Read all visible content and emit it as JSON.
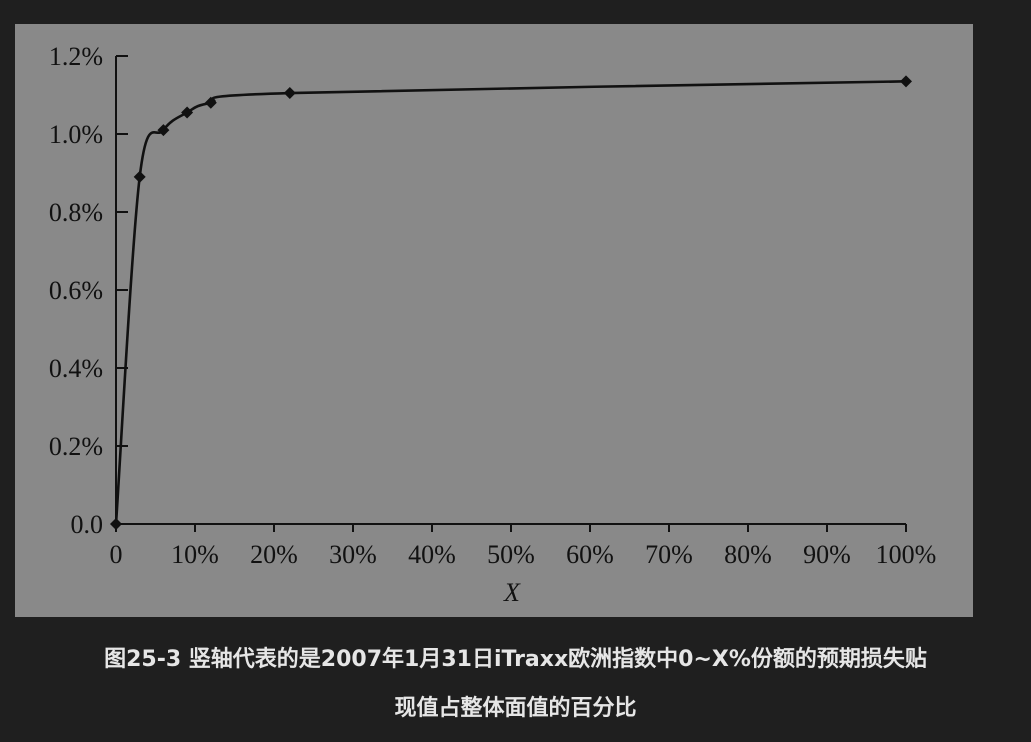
{
  "caption": {
    "line1": "图25-3 竖轴代表的是2007年1月31日iTraxx欧洲指数中0~X%份额的预期损失贴",
    "line2": "现值占整体面值的百分比"
  },
  "chart_data": {
    "type": "line",
    "title": "",
    "xlabel": "X",
    "ylabel": "",
    "xlim": [
      0,
      100
    ],
    "ylim": [
      0,
      1.2
    ],
    "x_ticks": [
      0,
      10,
      20,
      30,
      40,
      50,
      60,
      70,
      80,
      90,
      100
    ],
    "x_tick_labels": [
      "0",
      "10%",
      "20%",
      "30%",
      "40%",
      "50%",
      "60%",
      "70%",
      "80%",
      "90%",
      "100%"
    ],
    "y_ticks": [
      0,
      0.2,
      0.4,
      0.6,
      0.8,
      1.0,
      1.2
    ],
    "y_tick_labels": [
      "0.0",
      "0.2%",
      "0.4%",
      "0.6%",
      "0.8%",
      "1.0%",
      "1.2%"
    ],
    "grid": false,
    "legend": "none",
    "series": [
      {
        "marker": "diamond",
        "color": "#111111",
        "x": [
          0,
          3,
          6,
          9,
          12,
          22,
          100
        ],
        "y": [
          0,
          0.89,
          1.01,
          1.055,
          1.08,
          1.105,
          1.135
        ]
      }
    ]
  }
}
